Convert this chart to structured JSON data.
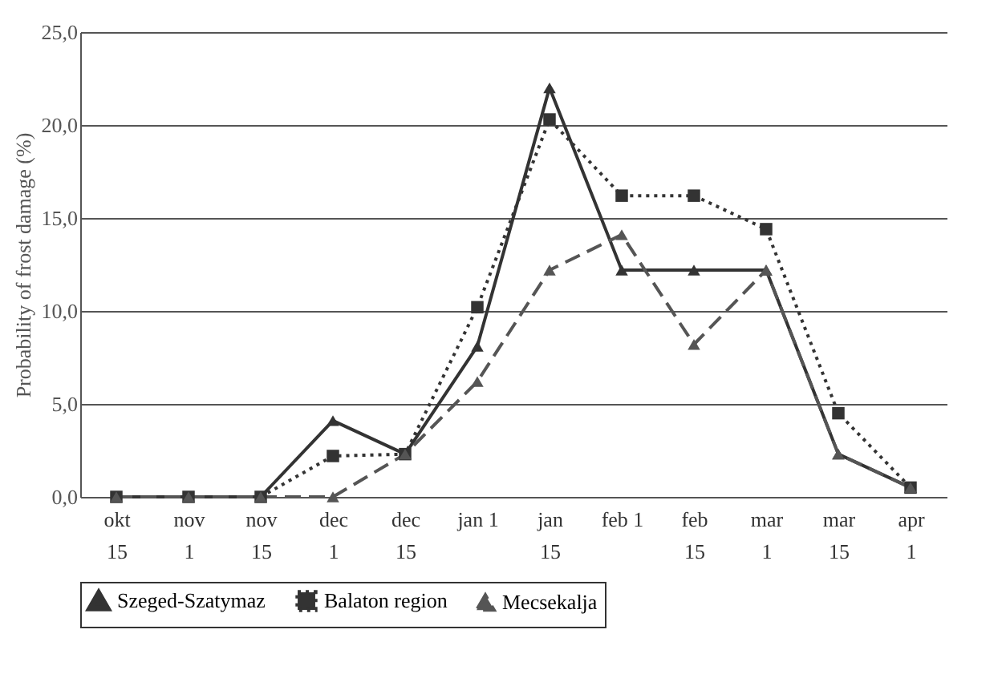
{
  "chart_data": {
    "type": "line",
    "ylabel": "Probability of frost damage (%)",
    "categories": [
      "okt\n15",
      "nov\n1",
      "nov\n15",
      "dec\n1",
      "dec\n15",
      "jan 1",
      "jan\n15",
      "feb 1",
      "feb\n15",
      "mar\n1",
      "mar\n15",
      "apr\n1"
    ],
    "ylim": [
      0,
      25
    ],
    "yticks": [
      {
        "value": 0,
        "label": "0,0"
      },
      {
        "value": 5,
        "label": "5,0"
      },
      {
        "value": 10,
        "label": "10,0"
      },
      {
        "value": 15,
        "label": "15,0"
      },
      {
        "value": 20,
        "label": "20,0"
      },
      {
        "value": 25,
        "label": "25,0"
      }
    ],
    "grid": "y",
    "legend": "bottom",
    "series": [
      {
        "name": "Szeged-Szatymaz",
        "color": "#333333",
        "marker": "triangle",
        "line_style": "solid",
        "values": [
          0,
          0,
          0,
          4.1,
          2.3,
          8.1,
          22.0,
          12.2,
          12.2,
          12.2,
          2.3,
          0.5
        ]
      },
      {
        "name": "Balaton region",
        "color": "#333333",
        "marker": "square",
        "line_style": "dotted",
        "values": [
          0,
          0,
          0,
          2.2,
          2.3,
          10.2,
          20.3,
          16.2,
          16.2,
          14.4,
          4.5,
          0.5
        ]
      },
      {
        "name": "Mecsekalja",
        "color": "#555555",
        "marker": "triangle",
        "line_style": "dashed",
        "values": [
          0,
          0,
          0,
          0,
          2.3,
          6.2,
          12.2,
          14.1,
          8.2,
          12.2,
          2.3,
          0.5
        ]
      }
    ]
  }
}
